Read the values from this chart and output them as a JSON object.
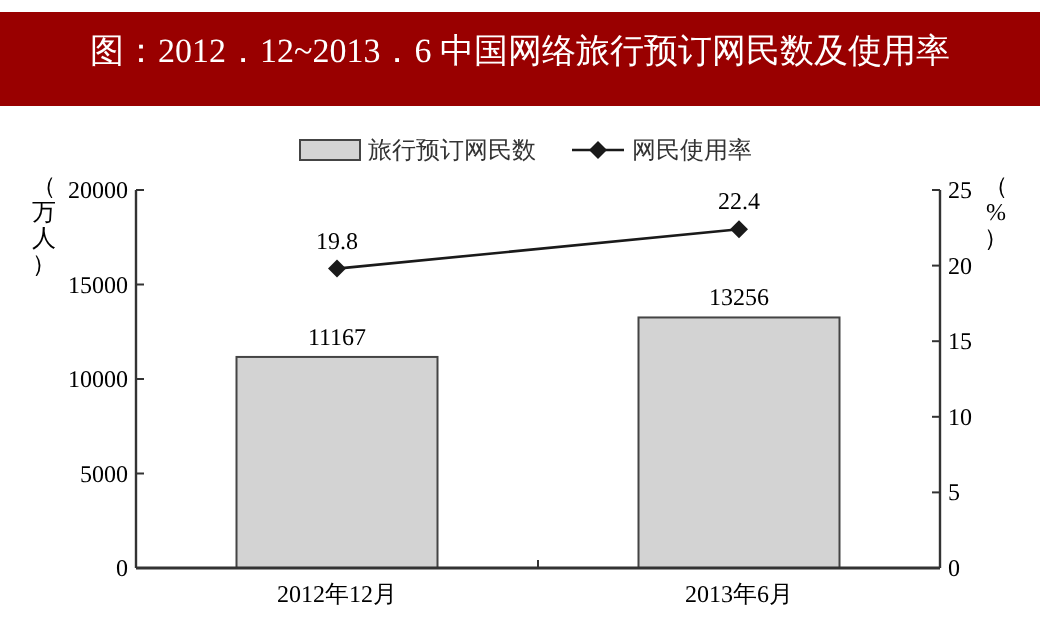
{
  "chart_data": {
    "type": "bar",
    "title": "图：2012．12~2013．6 中国网络旅行预订网民数及使用率",
    "ylabel": "（万人）",
    "y2label": "（%）",
    "categories": [
      "2012年12月",
      "2013年6月"
    ],
    "series": [
      {
        "name": "旅行预订网民数",
        "color": "#d3d3d3",
        "values": [
          11167,
          13256
        ]
      },
      {
        "name": "网民使用率",
        "type": "line",
        "axis": "y2",
        "color": "#1a1a1a",
        "marker": "diamond",
        "values": [
          19.8,
          22.4
        ]
      }
    ],
    "ylim": [
      0,
      20000
    ],
    "yticks": [
      0,
      5000,
      10000,
      15000,
      20000
    ],
    "y2lim": [
      0,
      25
    ],
    "y2ticks": [
      0,
      5,
      10,
      15,
      20,
      25
    ],
    "data_labels": true,
    "legend": "top",
    "grid": false
  }
}
